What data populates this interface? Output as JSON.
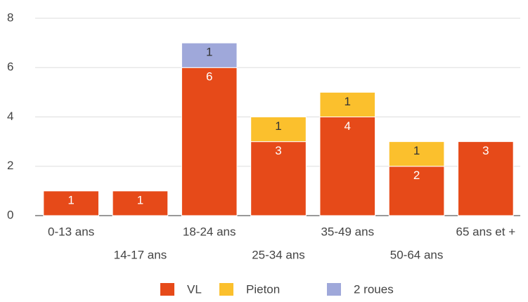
{
  "chart_data": {
    "type": "stacked_bar",
    "categories": [
      "0-13 ans",
      "14-17 ans",
      "18-24 ans",
      "25-34 ans",
      "35-49 ans",
      "50-64 ans",
      "65 ans et +"
    ],
    "series": [
      {
        "name": "VL",
        "color": "#e64a19",
        "values": [
          1,
          1,
          6,
          3,
          4,
          2,
          3
        ]
      },
      {
        "name": "Pieton",
        "color": "#fbc02d",
        "values": [
          0,
          0,
          0,
          1,
          1,
          1,
          0
        ]
      },
      {
        "name": "2 roues",
        "color": "#9fa8da",
        "values": [
          0,
          0,
          1,
          0,
          0,
          0,
          0
        ]
      }
    ],
    "ylim": [
      0,
      8
    ],
    "yticks": [
      0,
      2,
      4,
      6,
      8
    ],
    "grid": true,
    "legend": "bottom"
  }
}
